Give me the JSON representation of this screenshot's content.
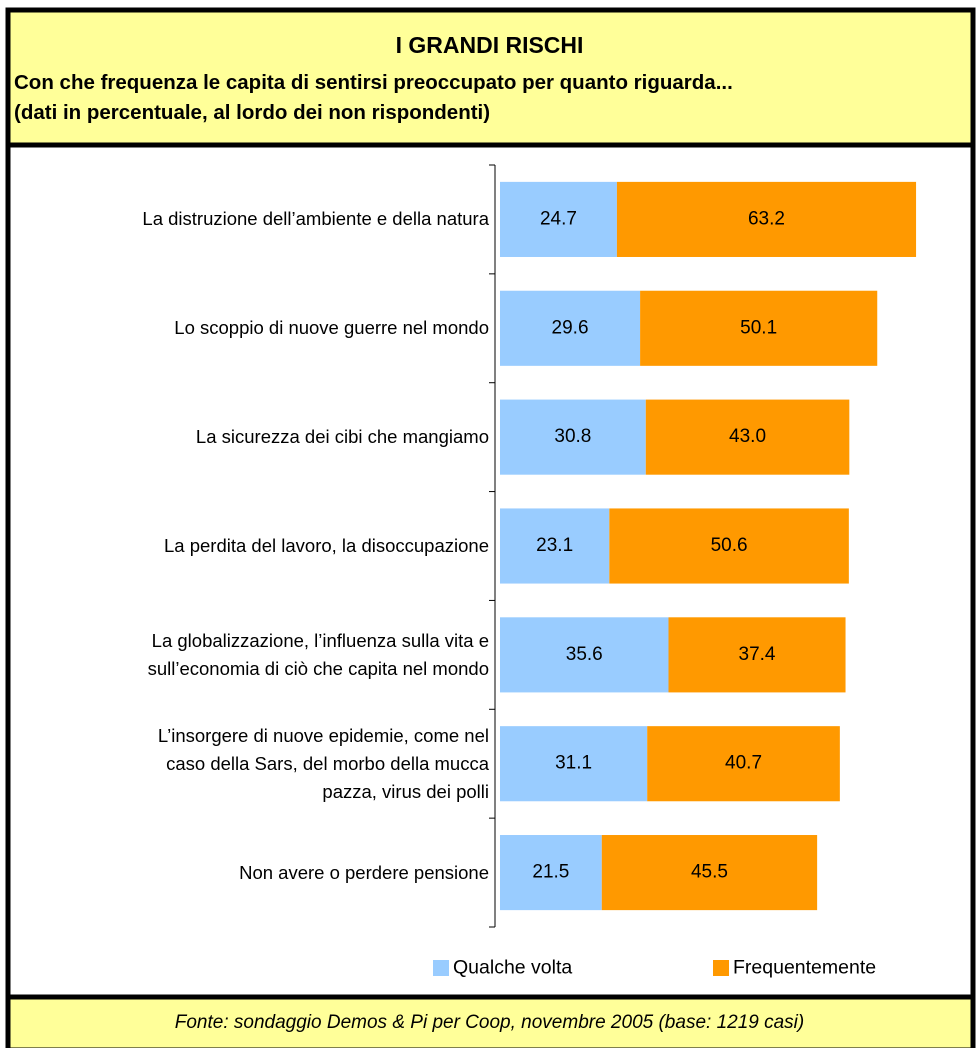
{
  "chart_data": {
    "type": "stacked-bar-horizontal",
    "title": "I GRANDI RISCHI",
    "subtitle": "Con che frequenza le capita di sentirsi preoccupato per quanto riguarda...\n(dati in percentuale, al lordo dei non rispondenti)",
    "source": "Fonte: sondaggio Demos & Pi per Coop, novembre 2005 (base: 1219 casi)",
    "categories": [
      "La distruzione dell’ambiente e della natura",
      "Lo scoppio di nuove guerre nel mondo",
      "La sicurezza dei cibi che mangiamo",
      "La perdita del lavoro, la disoccupazione",
      "La globalizzazione, l’influenza sulla vita e\nsull’economia di ciò che capita nel mondo",
      "L’insorgere di nuove epidemie, come nel\ncaso della Sars, del morbo della mucca\npazza, virus dei polli",
      "Non avere o perdere pensione"
    ],
    "series": [
      {
        "name": "Qualche volta",
        "color": "#99ccff",
        "values": [
          24.7,
          29.6,
          30.8,
          23.1,
          35.6,
          31.1,
          21.5
        ],
        "value_labels": [
          "24.7",
          "29.6",
          "30.8",
          "23.1",
          "35.6",
          "31.1",
          "21.5"
        ]
      },
      {
        "name": "Frequentemente",
        "color": "#ff9900",
        "values": [
          63.2,
          50.1,
          43.0,
          50.6,
          37.4,
          40.7,
          45.5
        ],
        "value_labels": [
          "63.2",
          "50.1",
          "43.0",
          "50.6",
          "37.4",
          "40.7",
          "45.5"
        ]
      }
    ],
    "xlim": [
      0,
      90
    ],
    "legend": "bottom"
  }
}
